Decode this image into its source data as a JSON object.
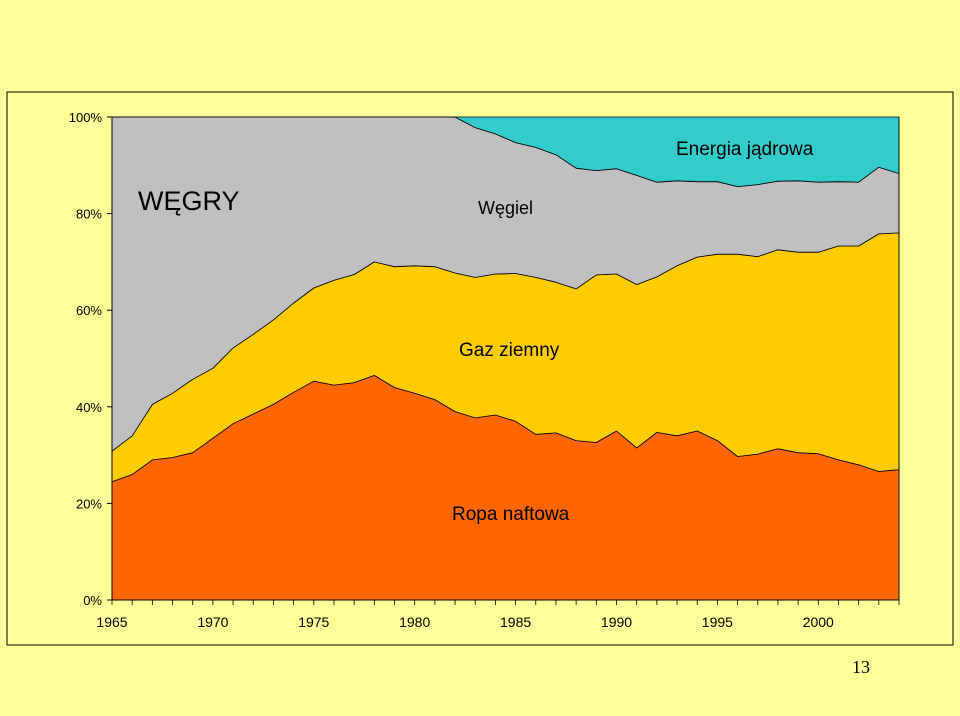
{
  "page": {
    "number": "13"
  },
  "chart_data": {
    "type": "area",
    "stacked": "percent",
    "title": "WĘGRY",
    "xlabel": "",
    "ylabel": "",
    "ylim": [
      0,
      100
    ],
    "xlim": [
      1965,
      2004
    ],
    "y_ticks": [
      "0%",
      "20%",
      "40%",
      "60%",
      "80%",
      "100%"
    ],
    "y_tick_values": [
      0,
      20,
      40,
      60,
      80,
      100
    ],
    "x_ticks": [
      "1965",
      "1970",
      "1975",
      "1980",
      "1985",
      "1990",
      "1995",
      "2000"
    ],
    "x_tick_values": [
      1965,
      1970,
      1975,
      1980,
      1985,
      1990,
      1995,
      2000
    ],
    "grid": false,
    "legend": "none",
    "colors": {
      "background": "#FFFF99",
      "plot_area": "#FFFFFF",
      "Ropa naftowa": "#FF6600",
      "Gaz ziemny": "#FFCC00",
      "Węgiel": "#C0C0C0",
      "Energia jądrowa": "#33CCCC"
    },
    "x": [
      1965,
      1966,
      1967,
      1968,
      1969,
      1970,
      1971,
      1972,
      1973,
      1974,
      1975,
      1976,
      1977,
      1978,
      1979,
      1980,
      1981,
      1982,
      1983,
      1984,
      1985,
      1986,
      1987,
      1988,
      1989,
      1990,
      1991,
      1992,
      1993,
      1994,
      1995,
      1996,
      1997,
      1998,
      1999,
      2000,
      2001,
      2002,
      2003,
      2004
    ],
    "series": [
      {
        "name": "Ropa naftowa",
        "values": [
          24.5,
          26,
          29,
          29.5,
          30.5,
          33.5,
          36.5,
          38.5,
          40.5,
          43,
          45.3,
          44.5,
          45,
          46.5,
          44,
          42.8,
          41.5,
          39,
          37.7,
          38.3,
          37,
          34.3,
          34.6,
          33,
          32.6,
          35,
          31.5,
          34.7,
          34,
          35,
          33,
          29.7,
          30.2,
          31.3,
          30.5,
          30.3,
          29,
          28,
          26.6,
          27
        ]
      },
      {
        "name": "Gaz ziemny",
        "values": [
          6.3,
          8,
          11.5,
          13.3,
          15.2,
          14.5,
          15.7,
          16.5,
          17.5,
          18.5,
          19.3,
          21.7,
          22.4,
          23.5,
          25,
          26.4,
          27.5,
          28.7,
          29.1,
          29.2,
          30.6,
          32.5,
          31.2,
          31.4,
          34.7,
          32.5,
          33.8,
          32.2,
          35.2,
          36,
          38.6,
          41.9,
          40.9,
          41.2,
          41.5,
          41.7,
          44.3,
          45.3,
          49.2,
          49
        ]
      },
      {
        "name": "Węgiel",
        "values": [
          69.2,
          66,
          59.5,
          57.2,
          54.3,
          52,
          47.8,
          45,
          42,
          38.5,
          35.4,
          33.8,
          32.6,
          30,
          31,
          30.8,
          31,
          32.3,
          31,
          29,
          27.1,
          26.9,
          26.4,
          25,
          21.6,
          21.8,
          22.6,
          19.6,
          17.6,
          15.6,
          15,
          14,
          14.9,
          14.2,
          14.8,
          14.5,
          13.3,
          13.2,
          13.8,
          12.3
        ]
      },
      {
        "name": "Energia jądrowa",
        "values": [
          0,
          0,
          0,
          0,
          0,
          0,
          0,
          0,
          0,
          0,
          0,
          0,
          0,
          0,
          0,
          0,
          0,
          0,
          2.2,
          3.5,
          5.3,
          6.3,
          7.8,
          10.6,
          11.1,
          10.7,
          12.1,
          13.5,
          13.2,
          13.4,
          13.4,
          14.4,
          14,
          13.3,
          13.2,
          13.5,
          13.4,
          13.5,
          10.4,
          11.7
        ]
      }
    ],
    "annotations": [
      {
        "text": "WĘGRY"
      },
      {
        "text": "Energia jądrowa"
      },
      {
        "text": "Węgiel"
      },
      {
        "text": "Gaz ziemny"
      },
      {
        "text": "Ropa naftowa"
      }
    ]
  }
}
